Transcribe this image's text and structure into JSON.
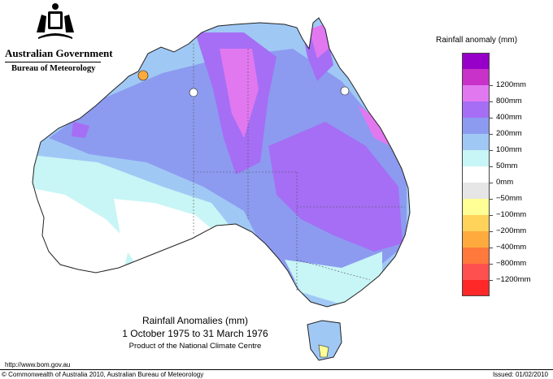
{
  "header": {
    "government": "Australian Government",
    "bureau": "Bureau of Meteorology",
    "crest_icon": "commonwealth-coat-of-arms"
  },
  "legend": {
    "title": "Rainfall anomaly (mm)",
    "items": [
      {
        "label": "",
        "color": "#9600c8"
      },
      {
        "label": "1200mm",
        "color": "#c832c8"
      },
      {
        "label": "800mm",
        "color": "#e178f0"
      },
      {
        "label": "400mm",
        "color": "#a56ef5"
      },
      {
        "label": "200mm",
        "color": "#8c9bf0"
      },
      {
        "label": "100mm",
        "color": "#a0c8f5"
      },
      {
        "label": "50mm",
        "color": "#c8f5f5"
      },
      {
        "label": "0mm",
        "color": "#ffffff"
      },
      {
        "label": "−50mm",
        "color": "#e6e6e6"
      },
      {
        "label": "−100mm",
        "color": "#ffff96"
      },
      {
        "label": "−200mm",
        "color": "#ffd25a"
      },
      {
        "label": "−400mm",
        "color": "#ffaa3c"
      },
      {
        "label": "−800mm",
        "color": "#ff783c"
      },
      {
        "label": "−1200mm",
        "color": "#ff5050"
      },
      {
        "label": "",
        "color": "#ff2828"
      }
    ]
  },
  "caption": {
    "title": "Rainfall Anomalies (mm)",
    "dates": "1 October 1975 to 31 March 1976",
    "product": "Product of the National Climate Centre"
  },
  "footer": {
    "url": "http://www.bom.gov.au",
    "copyright": "© Commonwealth of Australia 2010, Australian Bureau of Meteorology",
    "issued": "Issued: 01/02/2010"
  },
  "map_colors": {
    "ocean": "#ffffff",
    "outline": "#222222"
  }
}
